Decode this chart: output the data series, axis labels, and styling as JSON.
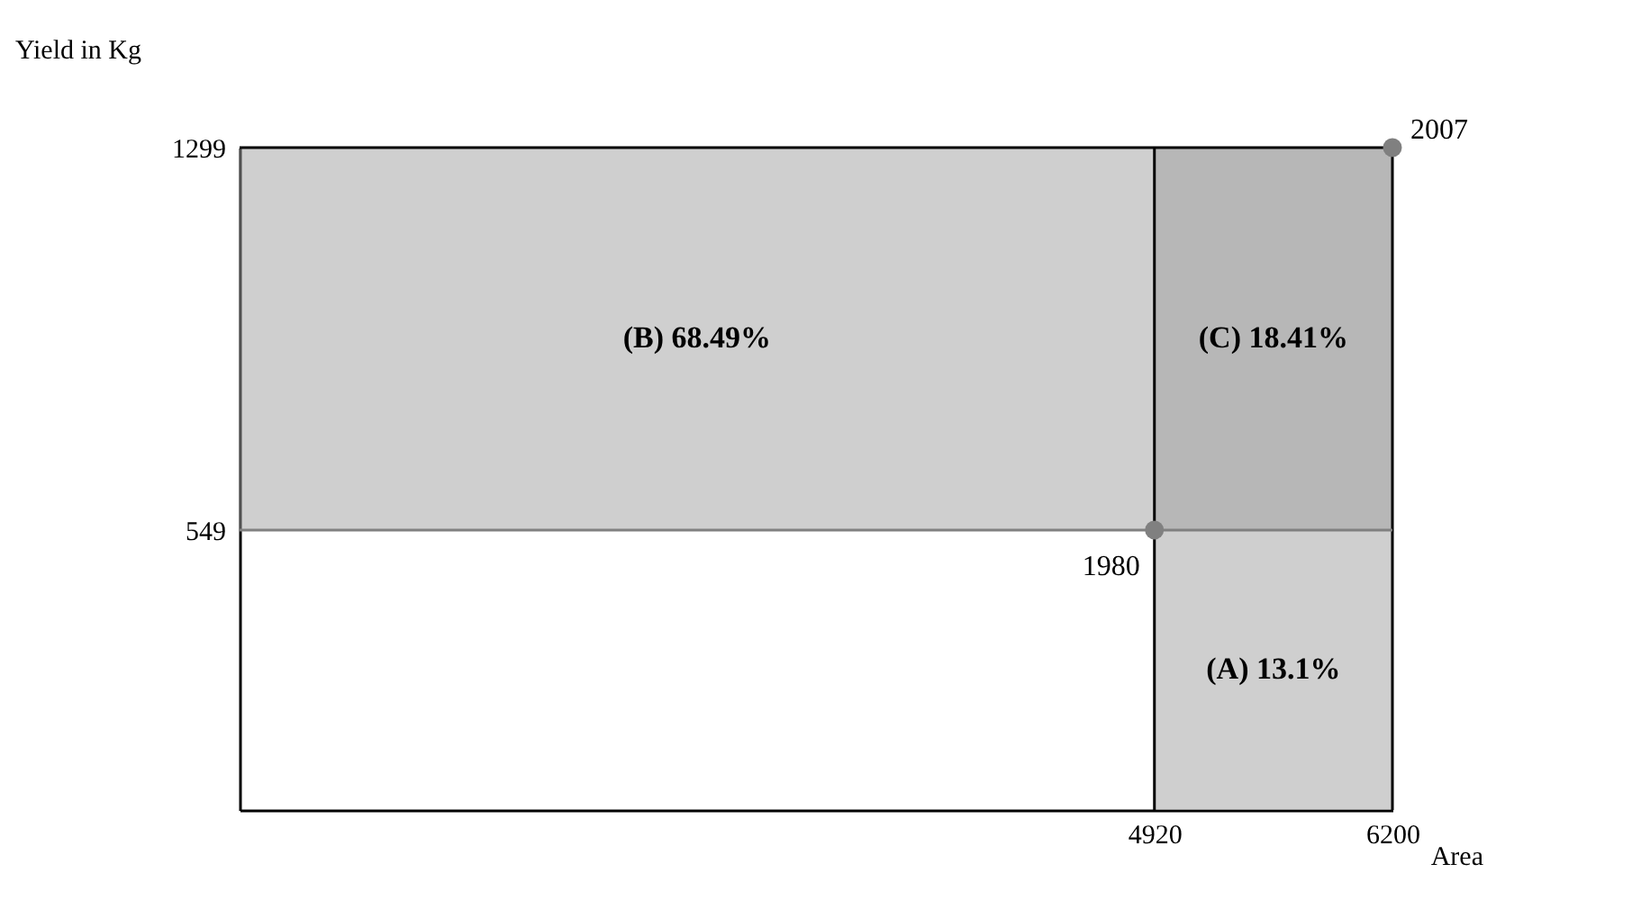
{
  "chart_data": {
    "type": "scatter",
    "xlabel": "Area",
    "ylabel": "Yield in Kg",
    "x": [
      4920,
      6200
    ],
    "xlim": [
      0,
      6200
    ],
    "xticks": [
      4920,
      6200
    ],
    "ylim": [
      0,
      1299
    ],
    "yticks": [
      549,
      1299
    ],
    "marker": "circle",
    "grid": false,
    "series": [
      {
        "color": "#808080",
        "values": [
          549,
          1299
        ]
      }
    ],
    "ref_lines": [
      {
        "axis": "y",
        "value": 549,
        "color": "#808080"
      },
      {
        "axis": "y",
        "value": 1299,
        "color": "#000000"
      },
      {
        "axis": "x",
        "value": 4920,
        "color": "#000000"
      },
      {
        "axis": "x",
        "value": 6200,
        "color": "#000000"
      }
    ],
    "bands": [
      {
        "axis": "x",
        "from": 4920,
        "to": 6200,
        "color": "#a0a0a0"
      },
      {
        "axis": "y",
        "from": 549,
        "to": 1299,
        "color": "#a0a0a0"
      }
    ],
    "annotations": [
      {
        "text": "1980",
        "x": 4920,
        "y": 549
      },
      {
        "text": "2007",
        "x": 6200,
        "y": 1299
      },
      "(A) 13.1%",
      "(B) 68.49%",
      "(C) 18.41%"
    ]
  }
}
